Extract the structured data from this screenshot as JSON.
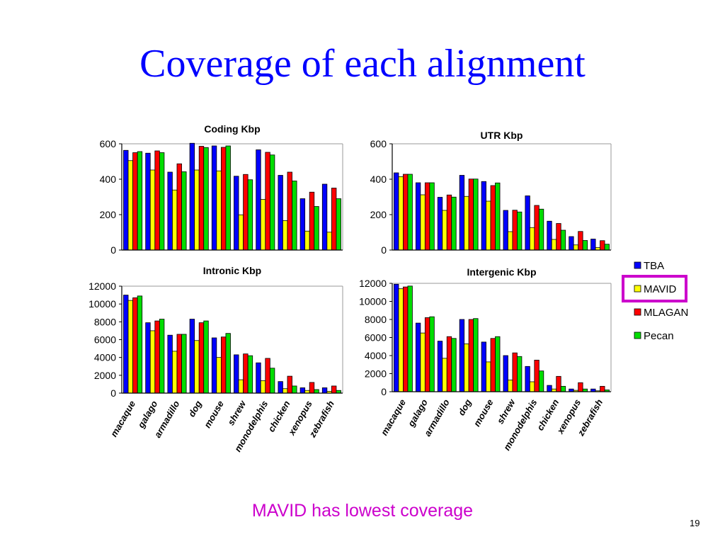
{
  "slide": {
    "title": "Coverage of each alignment",
    "caption": "MAVID has lowest coverage",
    "page_number": "19"
  },
  "colors": {
    "TBA": "#0000ff",
    "MAVID": "#ffff00",
    "MLAGAN": "#ff0000",
    "Pecan": "#00dd00",
    "highlight": "#cc00cc"
  },
  "legend": {
    "items": [
      "TBA",
      "MAVID",
      "MLAGAN",
      "Pecan"
    ],
    "highlighted": "MAVID"
  },
  "chart_data": [
    {
      "type": "bar",
      "title": "Coding Kbp",
      "categories": [
        "macaque",
        "galago",
        "armadillo",
        "dog",
        "mouse",
        "shrew",
        "monodelphis",
        "chicken",
        "xenopus",
        "zebrafish"
      ],
      "ylim": [
        0,
        600
      ],
      "yticks": [
        "0",
        "200",
        "400",
        "600"
      ],
      "series": [
        {
          "name": "TBA",
          "values": [
            563,
            547,
            440,
            603,
            588,
            417,
            566,
            422,
            290,
            372
          ]
        },
        {
          "name": "MAVID",
          "values": [
            505,
            452,
            339,
            452,
            447,
            199,
            286,
            166,
            107,
            101
          ]
        },
        {
          "name": "MLAGAN",
          "values": [
            550,
            560,
            487,
            586,
            580,
            427,
            552,
            440,
            327,
            350
          ]
        },
        {
          "name": "Pecan",
          "values": [
            556,
            550,
            442,
            579,
            588,
            397,
            537,
            390,
            246,
            290
          ]
        }
      ]
    },
    {
      "type": "bar",
      "title": "UTR Kbp",
      "categories": [
        "macaque",
        "galago",
        "armadillo",
        "dog",
        "mouse",
        "shrew",
        "monodelphis",
        "chicken",
        "xenopus",
        "zebrafish"
      ],
      "ylim": [
        0,
        600
      ],
      "yticks": [
        "0",
        "200",
        "400",
        "600"
      ],
      "series": [
        {
          "name": "TBA",
          "values": [
            436,
            380,
            298,
            422,
            387,
            224,
            306,
            163,
            76,
            62
          ]
        },
        {
          "name": "MAVID",
          "values": [
            414,
            312,
            224,
            303,
            276,
            104,
            127,
            60,
            29,
            14
          ]
        },
        {
          "name": "MLAGAN",
          "values": [
            428,
            380,
            311,
            401,
            364,
            225,
            252,
            150,
            105,
            53
          ]
        },
        {
          "name": "Pecan",
          "values": [
            428,
            380,
            299,
            401,
            379,
            215,
            231,
            112,
            54,
            33
          ]
        }
      ]
    },
    {
      "type": "bar",
      "title": "Intronic Kbp",
      "categories": [
        "macaque",
        "galago",
        "armadillo",
        "dog",
        "mouse",
        "shrew",
        "monodelphis",
        "chicken",
        "xenopus",
        "zebrafish"
      ],
      "ylim": [
        0,
        12000
      ],
      "yticks": [
        "0",
        "2000",
        "4000",
        "6000",
        "8000",
        "10000",
        "12000"
      ],
      "series": [
        {
          "name": "TBA",
          "values": [
            11000,
            7900,
            6500,
            8300,
            6200,
            4300,
            3400,
            1300,
            600,
            600
          ]
        },
        {
          "name": "MAVID",
          "values": [
            10400,
            7000,
            4700,
            5900,
            4000,
            1500,
            1400,
            500,
            300,
            200
          ]
        },
        {
          "name": "MLAGAN",
          "values": [
            10700,
            8100,
            6600,
            7900,
            6300,
            4400,
            3900,
            1900,
            1200,
            800
          ]
        },
        {
          "name": "Pecan",
          "values": [
            10900,
            8300,
            6600,
            8100,
            6700,
            4200,
            2800,
            800,
            400,
            300
          ]
        }
      ]
    },
    {
      "type": "bar",
      "title": "Intergenic Kbp",
      "categories": [
        "macaque",
        "galago",
        "armadillo",
        "dog",
        "mouse",
        "shrew",
        "monodelphis",
        "chicken",
        "xenopus",
        "zebrafish"
      ],
      "ylim": [
        0,
        12000
      ],
      "yticks": [
        "0",
        "2000",
        "4000",
        "6000",
        "8000",
        "10000",
        "12000"
      ],
      "series": [
        {
          "name": "TBA",
          "values": [
            11900,
            7600,
            5600,
            8000,
            5500,
            4000,
            2800,
            700,
            300,
            300
          ]
        },
        {
          "name": "MAVID",
          "values": [
            11400,
            6500,
            3700,
            5300,
            3300,
            1300,
            1100,
            300,
            150,
            100
          ]
        },
        {
          "name": "MLAGAN",
          "values": [
            11600,
            8200,
            6100,
            8000,
            5900,
            4300,
            3500,
            1700,
            1000,
            600
          ]
        },
        {
          "name": "Pecan",
          "values": [
            11700,
            8300,
            5900,
            8100,
            6100,
            3900,
            2300,
            600,
            300,
            200
          ]
        }
      ]
    }
  ]
}
